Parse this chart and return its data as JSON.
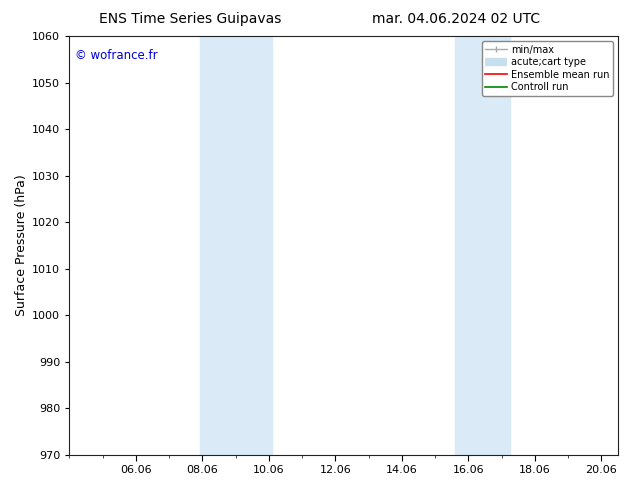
{
  "title_left": "ENS Time Series Guipavas",
  "title_right": "mar. 04.06.2024 02 UTC",
  "ylabel": "Surface Pressure (hPa)",
  "ylim": [
    970,
    1060
  ],
  "yticks": [
    970,
    980,
    990,
    1000,
    1010,
    1020,
    1030,
    1040,
    1050,
    1060
  ],
  "xlim_start": 4.0,
  "xlim_end": 20.5,
  "xticks_major": [
    6.0,
    8.0,
    10.0,
    12.0,
    14.0,
    16.0,
    18.0,
    20.0
  ],
  "xticklabels": [
    "06.06",
    "08.06",
    "10.06",
    "12.06",
    "14.06",
    "16.06",
    "18.06",
    "20.06"
  ],
  "shaded_bands": [
    {
      "xmin": 7.917,
      "xmax": 10.083
    },
    {
      "xmin": 15.583,
      "xmax": 17.25
    }
  ],
  "band_color": "#daeaf7",
  "background_color": "#ffffff",
  "watermark": "© wofrance.fr",
  "watermark_color": "#0000dd",
  "legend_items": [
    {
      "label": "min/max",
      "color": "#aaaaaa",
      "lw": 1.0
    },
    {
      "label": "acute;cart type",
      "color": "#c8dff0",
      "lw": 6
    },
    {
      "label": "Ensemble mean run",
      "color": "#ff0000",
      "lw": 1.2
    },
    {
      "label": "Controll run",
      "color": "#008800",
      "lw": 1.2
    }
  ],
  "title_fontsize": 10,
  "tick_fontsize": 8,
  "ylabel_fontsize": 9
}
